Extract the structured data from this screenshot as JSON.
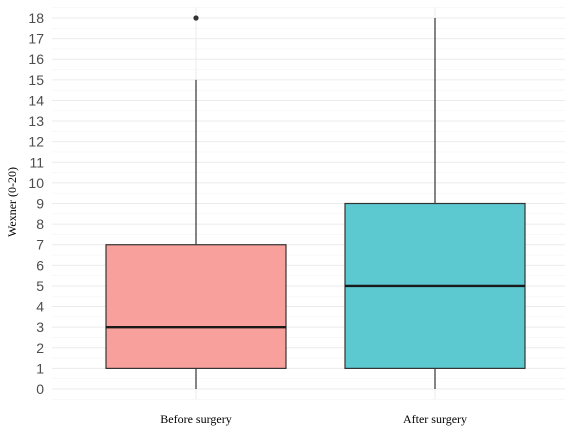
{
  "chart_data": {
    "type": "boxplot",
    "title": "",
    "xlabel": "",
    "ylabel": "Wexner (0-20)",
    "ylim": [
      -0.5,
      18.5
    ],
    "yticks": [
      0,
      1,
      2,
      3,
      4,
      5,
      6,
      7,
      8,
      9,
      10,
      11,
      12,
      13,
      14,
      15,
      16,
      17,
      18
    ],
    "grid": true,
    "categories": [
      "Before surgery",
      "After surgery"
    ],
    "boxes": [
      {
        "category": "Before surgery",
        "min": 0,
        "q1": 1,
        "median": 3,
        "q3": 7,
        "max": 15,
        "outliers": [
          18
        ],
        "color": "#F8A09C"
      },
      {
        "category": "After surgery",
        "min": 0,
        "q1": 1,
        "median": 5,
        "q3": 9,
        "max": 18,
        "outliers": [],
        "color": "#5CC8D0"
      }
    ]
  }
}
